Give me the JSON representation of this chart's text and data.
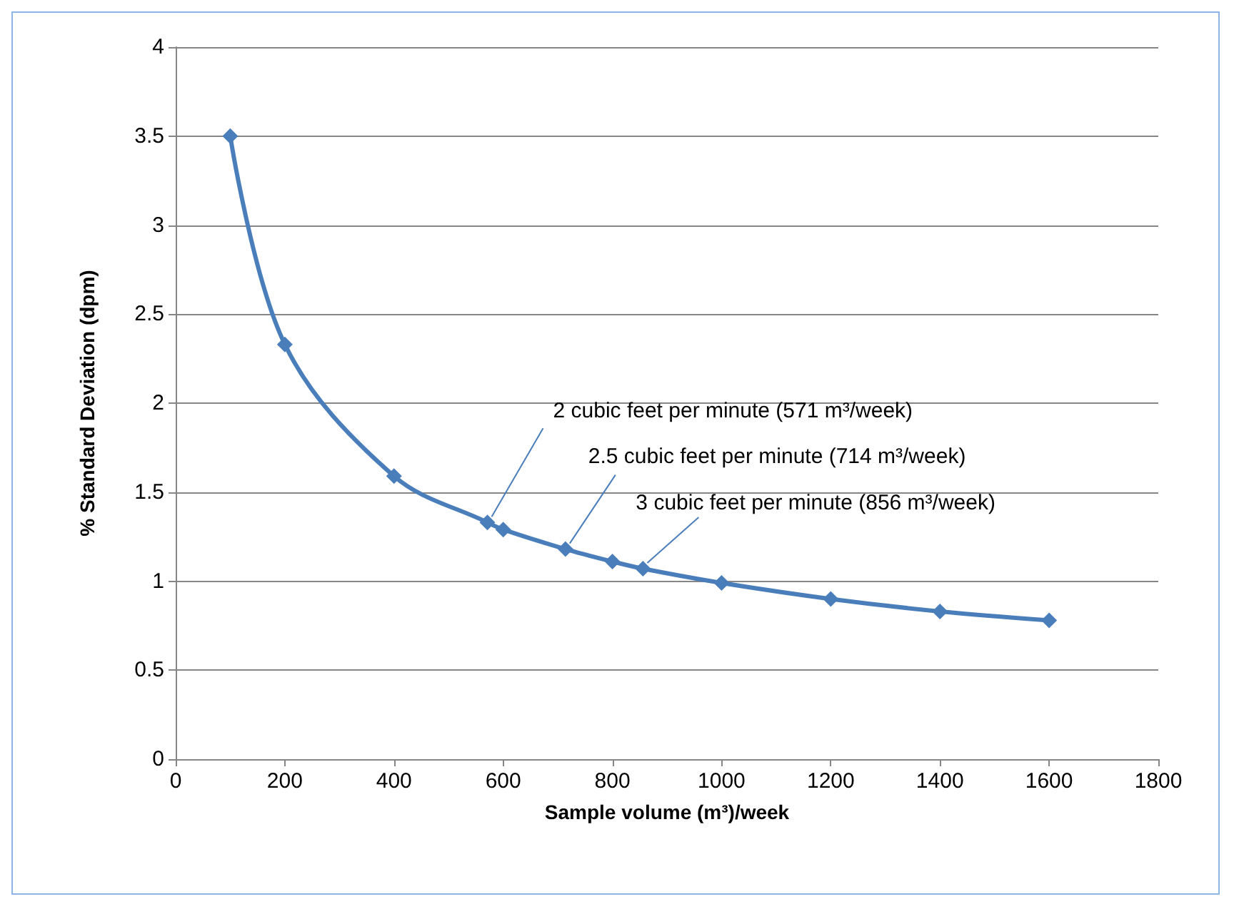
{
  "chart_data": {
    "type": "line",
    "xlabel": "Sample volume (m³)/week",
    "ylabel": "% Standard Deviation (dpm)",
    "x": [
      100,
      200,
      400,
      571,
      600,
      714,
      800,
      856,
      1000,
      1200,
      1400,
      1600
    ],
    "series": [
      {
        "color": "#4a7ebb",
        "values": [
          3.5,
          2.33,
          1.59,
          1.33,
          1.29,
          1.18,
          1.11,
          1.07,
          0.99,
          0.9,
          0.83,
          0.78
        ]
      }
    ],
    "xlim": [
      0,
      1800
    ],
    "xticks": [
      0,
      200,
      400,
      600,
      800,
      1000,
      1200,
      1400,
      1600,
      1800
    ],
    "ylim": [
      0,
      4
    ],
    "yticks": [
      0,
      0.5,
      1,
      1.5,
      2,
      2.5,
      3,
      3.5,
      4
    ],
    "grid": "y",
    "marker": "diamond",
    "line_style": "solid",
    "annotations": [
      {
        "text": "2 cubic feet per minute (571 m³/week)",
        "x": 571,
        "y": 1.33
      },
      {
        "text": "2.5 cubic feet per minute (714 m³/week)",
        "x": 714,
        "y": 1.18
      },
      {
        "text": "3 cubic feet per minute (856 m³/week)",
        "x": 856,
        "y": 1.07
      }
    ]
  }
}
